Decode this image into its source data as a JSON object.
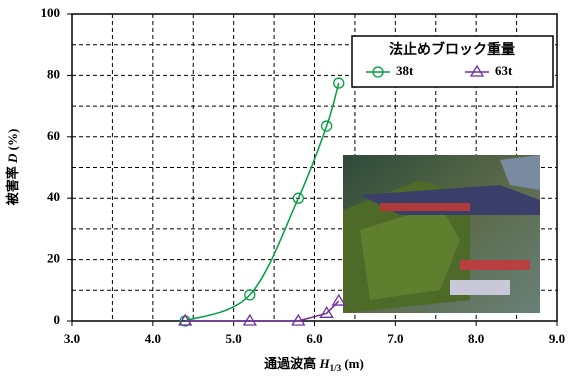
{
  "chart_data": {
    "type": "line",
    "x_label": {
      "text": "通過波高 ",
      "var": "H",
      "sub": "1/3",
      "unit": " (m)"
    },
    "y_label": {
      "text": "被害率 ",
      "var": "D",
      "unit": " (%)"
    },
    "legend_title": "法止めブロック重量",
    "xlim": [
      3.0,
      9.0
    ],
    "xticks": [
      {
        "value": 3,
        "label": "3.0"
      },
      {
        "value": 4,
        "label": "4.0"
      },
      {
        "value": 5,
        "label": "5.0"
      },
      {
        "value": 6,
        "label": "6.0"
      },
      {
        "value": 7,
        "label": "7.0"
      },
      {
        "value": 8,
        "label": "8.0"
      },
      {
        "value": 9,
        "label": "9.0"
      }
    ],
    "ylim": [
      0,
      100
    ],
    "yticks": [
      0,
      20,
      40,
      60,
      80,
      100
    ],
    "grid": true,
    "series": [
      {
        "name": "38t",
        "color": "#00a040",
        "marker": "circle",
        "smooth": true,
        "x": [
          4.4,
          5.2,
          5.8,
          6.15,
          6.3
        ],
        "values": [
          0,
          8.5,
          40,
          63.5,
          77.5
        ]
      },
      {
        "name": "63t",
        "color": "#7030a0",
        "marker": "triangle",
        "smooth": false,
        "x": [
          4.4,
          5.2,
          5.8,
          6.15,
          6.3
        ],
        "values": [
          0,
          0,
          0,
          2.5,
          6.5
        ]
      }
    ]
  }
}
